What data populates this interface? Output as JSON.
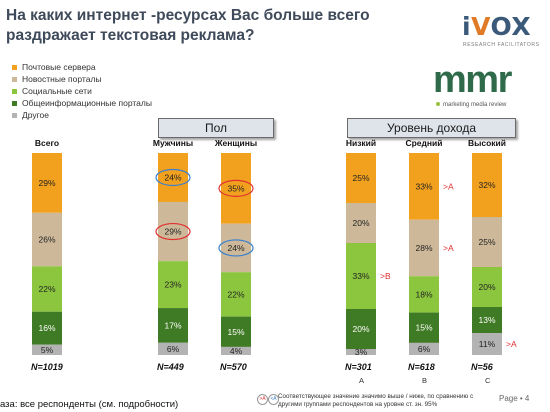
{
  "header": {
    "title_line1": "На каких интернет -ресурсах Вас больше всего",
    "title_line2": "раздражает текстовая реклама?"
  },
  "branding": {
    "ivox_i": "i",
    "ivox_v": "V",
    "ivox_ox": "OX",
    "ivox_sub": "RESEARCH FACILITATORS",
    "mmr_mm": "mm",
    "mmr_r": "r",
    "mmr_sub": "marketing media review"
  },
  "groups": {
    "gender": "Пол",
    "income": "Уровень дохода"
  },
  "footer": {
    "base_text": "аза: все респонденты (см. подробности)",
    "note_badge1": ">A",
    "note_badge2": "<A",
    "note_line1": "Соответствующее значение значимо выше / ниже, по сравнению с",
    "note_line2": "другими группами респондентов на уровне ст. зн. 95%",
    "page": "Page • 4"
  },
  "chart_data": {
    "type": "bar",
    "stacked": true,
    "categories": [
      "Всего",
      "Мужчины",
      "Женщины",
      "Низкий",
      "Средний",
      "Высокий"
    ],
    "bases": [
      "N=1019",
      "N=449",
      "N=570",
      "N=301",
      "N=618",
      "N=56"
    ],
    "column_letters": [
      "",
      "",
      "",
      "A",
      "B",
      "C"
    ],
    "series": [
      {
        "name": "Почтовые сервера",
        "color": "#f2a11e",
        "values": [
          29,
          24,
          35,
          25,
          33,
          32
        ],
        "labels": [
          "29%",
          "24%",
          "35%",
          "25%",
          "33%",
          "32%"
        ]
      },
      {
        "name": "Новостные порталы",
        "color": "#cdb99a",
        "values": [
          26,
          29,
          24,
          20,
          28,
          25
        ],
        "labels": [
          "26%",
          "29%",
          "24%",
          "20%",
          "28%",
          "25%"
        ]
      },
      {
        "name": "Социальные сети",
        "color": "#8cc63f",
        "values": [
          22,
          23,
          22,
          33,
          18,
          20
        ],
        "labels": [
          "22%",
          "23%",
          "22%",
          "33%",
          "18%",
          "20%"
        ]
      },
      {
        "name": "Общеинформационные порталы",
        "color": "#3f7a24",
        "values": [
          16,
          17,
          15,
          20,
          15,
          13
        ],
        "labels": [
          "16%",
          "17%",
          "15%",
          "20%",
          "15%",
          "13%"
        ]
      },
      {
        "name": "Другое",
        "color": "#b3b3b3",
        "values": [
          5,
          6,
          4,
          3,
          6,
          11
        ],
        "labels": [
          "5%",
          "6%",
          "4%",
          "3%",
          "6%",
          "11%"
        ]
      }
    ],
    "series_order_in_bar": "top-to-bottom",
    "annotations": [
      {
        "text": ">A",
        "category": "Средний",
        "series": "Почтовые сервера",
        "color": "#e03030"
      },
      {
        "text": ">A",
        "category": "Средний",
        "series": "Новостные порталы",
        "color": "#e03030"
      },
      {
        "text": ">B",
        "category": "Низкий",
        "series": "Социальные сети",
        "color": "#e03030"
      },
      {
        "text": ">A",
        "category": "Высокий",
        "series": "Другое",
        "color": "#e03030"
      }
    ],
    "highlights": [
      {
        "category": "Мужчины",
        "series": "Почтовые сервера",
        "color": "#3a7fd0"
      },
      {
        "category": "Мужчины",
        "series": "Новостные порталы",
        "color": "#e03030"
      },
      {
        "category": "Женщины",
        "series": "Почтовые сервера",
        "color": "#e03030"
      },
      {
        "category": "Женщины",
        "series": "Новостные порталы",
        "color": "#3a7fd0"
      }
    ]
  }
}
